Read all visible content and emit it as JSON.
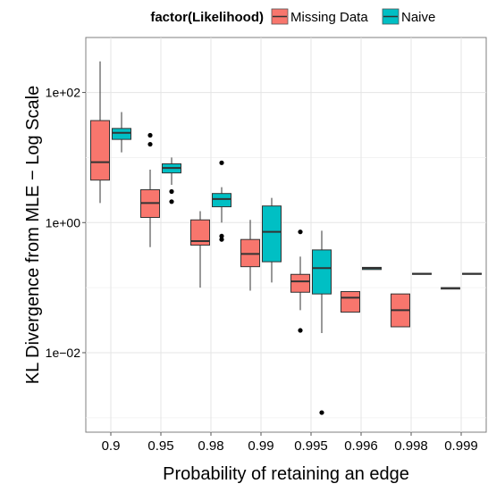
{
  "chart_data": {
    "type": "boxplot",
    "title": "",
    "xlabel": "Probability of retaining an edge",
    "ylabel": "KL Divergence from MLE − Log Scale",
    "y_scale": "log10",
    "ylim": [
      0.0006,
      700
    ],
    "y_ticks": [
      0.01,
      1,
      100
    ],
    "y_tick_labels": [
      "1e−02",
      "1e+00",
      "1e+02"
    ],
    "categories": [
      "0.9",
      "0.95",
      "0.98",
      "0.99",
      "0.995",
      "0.996",
      "0.998",
      "0.999"
    ],
    "grid": true,
    "legend": {
      "title": "factor(Likelihood)",
      "position": "top",
      "entries": [
        "Missing Data",
        "Naive"
      ]
    },
    "series": [
      {
        "name": "Missing Data",
        "color": "#F8766D",
        "boxes": [
          {
            "category": "0.9",
            "whisker_low": 2.0,
            "q1": 4.5,
            "median": 8.5,
            "q3": 37,
            "whisker_high": 300,
            "outliers": []
          },
          {
            "category": "0.95",
            "whisker_low": 0.42,
            "q1": 1.2,
            "median": 2.0,
            "q3": 3.2,
            "whisker_high": 6.5,
            "outliers": [
              16,
              22
            ]
          },
          {
            "category": "0.98",
            "whisker_low": 0.1,
            "q1": 0.45,
            "median": 0.52,
            "q3": 1.1,
            "whisker_high": 1.5,
            "outliers": []
          },
          {
            "category": "0.99",
            "whisker_low": 0.09,
            "q1": 0.21,
            "median": 0.33,
            "q3": 0.55,
            "whisker_high": 1.1,
            "outliers": []
          },
          {
            "category": "0.995",
            "whisker_low": 0.045,
            "q1": 0.085,
            "median": 0.125,
            "q3": 0.16,
            "whisker_high": 0.3,
            "outliers": [
              0.022,
              0.72
            ]
          },
          {
            "category": "0.996",
            "whisker_low": 0.042,
            "q1": 0.042,
            "median": 0.07,
            "q3": 0.087,
            "whisker_high": 0.087,
            "outliers": []
          },
          {
            "category": "0.998",
            "whisker_low": 0.025,
            "q1": 0.025,
            "median": 0.045,
            "q3": 0.08,
            "whisker_high": 0.08,
            "outliers": []
          }
        ]
      },
      {
        "name": "Naive",
        "color": "#00BFC4",
        "boxes": [
          {
            "category": "0.9",
            "whisker_low": 12,
            "q1": 19,
            "median": 24,
            "q3": 28,
            "whisker_high": 50,
            "outliers": []
          },
          {
            "category": "0.95",
            "whisker_low": 3.8,
            "q1": 5.8,
            "median": 6.9,
            "q3": 8.0,
            "whisker_high": 10,
            "outliers": [
              2.1,
              3.0
            ]
          },
          {
            "category": "0.98",
            "whisker_low": 1.0,
            "q1": 1.75,
            "median": 2.3,
            "q3": 2.8,
            "whisker_high": 3.5,
            "outliers": [
              0.55,
              0.62,
              8.3
            ]
          },
          {
            "category": "0.99",
            "whisker_low": 0.12,
            "q1": 0.25,
            "median": 0.72,
            "q3": 1.8,
            "whisker_high": 2.4,
            "outliers": []
          },
          {
            "category": "0.995",
            "whisker_low": 0.02,
            "q1": 0.08,
            "median": 0.2,
            "q3": 0.38,
            "whisker_high": 0.75,
            "outliers": [
              0.0012
            ]
          },
          {
            "category": "0.996",
            "whisker_low": 0.19,
            "q1": 0.19,
            "median": 0.2,
            "q3": 0.205,
            "whisker_high": 0.205,
            "outliers": []
          },
          {
            "category": "0.998",
            "whisker_low": 0.16,
            "q1": 0.16,
            "median": 0.163,
            "q3": 0.166,
            "whisker_high": 0.166,
            "outliers": []
          },
          {
            "category": "0.999",
            "whisker_low": 0.16,
            "q1": 0.16,
            "median": 0.163,
            "q3": 0.166,
            "whisker_high": 0.166,
            "outliers": []
          }
        ]
      }
    ],
    "extra_boxes": [
      {
        "category": "0.999",
        "series": "Missing Data (empty fill)",
        "color": "#555555",
        "whisker_low": 0.095,
        "q1": 0.095,
        "median": 0.098,
        "q3": 0.1,
        "whisker_high": 0.1,
        "outliers": []
      }
    ]
  }
}
